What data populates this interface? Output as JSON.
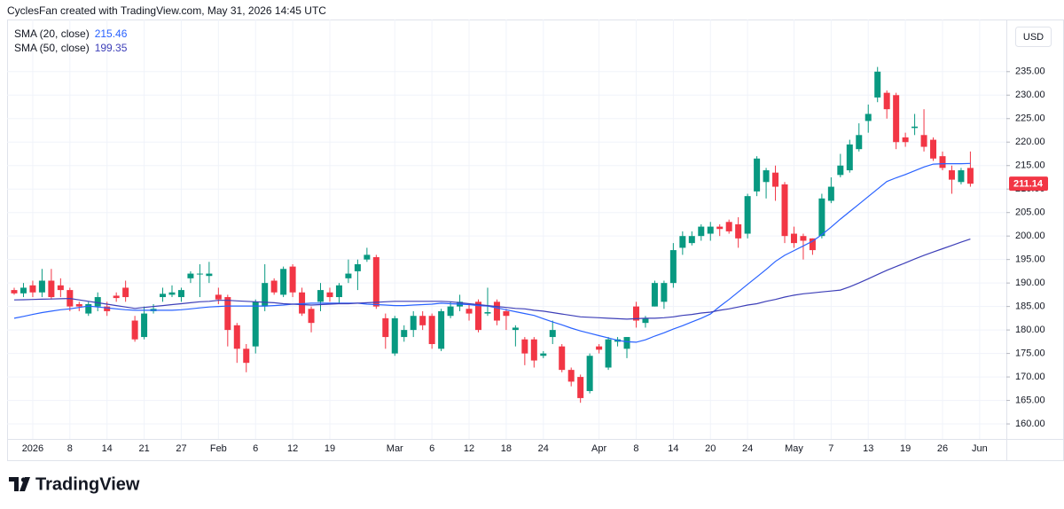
{
  "chart_data": {
    "type": "candlestick",
    "title": "CyclesFan created with TradingView.com, May 31, 2026 14:45 UTC",
    "currency": "USD",
    "brand": "TradingView",
    "up_color": "#089981",
    "down_color": "#f23645",
    "grid": true,
    "ylim": [
      156.8,
      246.1
    ],
    "yticks": [
      {
        "value": 160,
        "label": "160.00"
      },
      {
        "value": 165,
        "label": "165.00"
      },
      {
        "value": 170,
        "label": "170.00"
      },
      {
        "value": 175,
        "label": "175.00"
      },
      {
        "value": 180,
        "label": "180.00"
      },
      {
        "value": 185,
        "label": "185.00"
      },
      {
        "value": 190,
        "label": "190.00"
      },
      {
        "value": 195,
        "label": "195.00"
      },
      {
        "value": 200,
        "label": "200.00"
      },
      {
        "value": 205,
        "label": "205.00"
      },
      {
        "value": 210,
        "label": "210.00"
      },
      {
        "value": 215,
        "label": "215.00"
      },
      {
        "value": 220,
        "label": "220.00"
      },
      {
        "value": 225,
        "label": "225.00"
      },
      {
        "value": 230,
        "label": "230.00"
      },
      {
        "value": 235,
        "label": "235.00"
      }
    ],
    "categories": [
      null,
      null,
      "2026",
      null,
      null,
      null,
      "8",
      null,
      null,
      null,
      "14",
      null,
      null,
      null,
      "21",
      null,
      null,
      null,
      "27",
      null,
      null,
      null,
      "Feb",
      null,
      null,
      null,
      "6",
      null,
      null,
      null,
      "12",
      null,
      null,
      null,
      "19",
      null,
      null,
      null,
      null,
      null,
      null,
      "Mar",
      null,
      null,
      null,
      "6",
      null,
      null,
      null,
      "12",
      null,
      null,
      null,
      "18",
      null,
      null,
      null,
      "24",
      null,
      null,
      null,
      null,
      null,
      "Apr",
      null,
      null,
      null,
      "8",
      null,
      null,
      null,
      "14",
      null,
      null,
      null,
      "20",
      null,
      null,
      null,
      "24",
      null,
      null,
      null,
      null,
      "May",
      null,
      null,
      null,
      "7",
      null,
      null,
      null,
      "13",
      null,
      null,
      null,
      "19",
      null,
      null,
      null,
      "26",
      null,
      null,
      null,
      "Jun"
    ],
    "open": [
      188.5,
      187.8,
      189.5,
      188,
      190.5,
      189.5,
      188.5,
      185.5,
      183.5,
      185,
      185,
      187.3,
      189,
      182,
      178.5,
      184,
      187,
      187.5,
      187,
      191,
      192,
      191.5,
      187.5,
      187,
      181,
      176,
      176.5,
      185,
      190.5,
      187.5,
      193.5,
      188,
      184.5,
      186,
      188,
      187,
      191,
      192.5,
      195,
      195.5,
      182.5,
      175,
      178.5,
      180,
      183,
      183,
      176,
      183,
      185,
      184.5,
      186,
      183.5,
      186,
      184,
      180,
      178,
      178,
      174.5,
      178.5,
      176.5,
      171.5,
      170,
      167,
      176.5,
      172,
      177.5,
      176,
      185,
      181.5,
      185,
      186,
      190,
      197.5,
      198.5,
      200,
      200.5,
      202,
      203,
      202.5,
      200.5,
      209.5,
      211.5,
      213.5,
      211,
      200.5,
      200,
      199.5,
      200,
      207.5,
      213,
      214,
      218.5,
      224.5,
      229.5,
      230.5,
      230,
      221,
      223,
      221.5,
      220.5,
      217,
      214,
      211.5,
      214.5,
      null
    ],
    "high": [
      189,
      190,
      190.5,
      193,
      193,
      191,
      189,
      186,
      186,
      188,
      186,
      188,
      190.5,
      183,
      185,
      185.5,
      189,
      189.5,
      189,
      192.5,
      194,
      194.5,
      189,
      187.5,
      181.5,
      177,
      186.5,
      194,
      191,
      193.5,
      194,
      189,
      185,
      190,
      189,
      190,
      195,
      195,
      197.5,
      196,
      183.5,
      183,
      181,
      184,
      184,
      183.5,
      184.5,
      186,
      187.5,
      185.5,
      186.5,
      189,
      186.5,
      184.5,
      181,
      178.5,
      178.5,
      175.5,
      182,
      177,
      172,
      170.5,
      175,
      177,
      178.5,
      178.5,
      178.5,
      186,
      183,
      190.5,
      190.5,
      198.5,
      201,
      201,
      202.5,
      203,
      202.5,
      203.5,
      204,
      209,
      217,
      214.5,
      215,
      211.5,
      202,
      200.5,
      199.5,
      209,
      212.5,
      217.5,
      220.5,
      224,
      228,
      236,
      231,
      230.5,
      222,
      226,
      227,
      221,
      218,
      215,
      214.5,
      218,
      null
    ],
    "low": [
      187.5,
      187,
      187,
      187,
      186.5,
      187,
      184,
      184,
      183,
      184,
      183,
      186,
      186,
      177.5,
      178,
      183.5,
      186,
      187,
      186,
      190,
      187,
      190,
      185.5,
      176.5,
      173,
      171,
      175,
      184,
      187.5,
      187,
      187,
      183,
      179.5,
      184,
      186,
      185.5,
      190,
      188.5,
      194.5,
      184.5,
      176,
      174.5,
      177.5,
      178.5,
      180,
      176,
      175.5,
      182.5,
      184,
      182,
      179.5,
      183,
      181,
      180,
      176.5,
      172.5,
      172,
      174,
      177,
      171,
      168,
      164.5,
      166.5,
      175,
      171.5,
      176.5,
      174,
      180.5,
      180.5,
      185,
      184.5,
      189,
      196,
      198,
      199,
      199,
      200,
      200.5,
      197.5,
      199.5,
      208.5,
      208,
      207.5,
      198.5,
      197.5,
      195,
      196,
      199.5,
      207,
      212.5,
      213.5,
      218,
      222,
      228.5,
      225,
      218.5,
      219,
      221.5,
      218,
      216,
      214,
      209,
      211,
      210.5,
      null
    ],
    "close": [
      187.8,
      189,
      188,
      190.5,
      187,
      188.5,
      185,
      185,
      185.5,
      187,
      184,
      186.8,
      187,
      178,
      183.5,
      184.5,
      187.7,
      188,
      188.5,
      192,
      192,
      192,
      186.5,
      180,
      176,
      173,
      186,
      190,
      188,
      193,
      188,
      183.5,
      181.5,
      188.5,
      187,
      189.5,
      192,
      194,
      196,
      185,
      178.5,
      182.5,
      180,
      183,
      181,
      177,
      184,
      185,
      186,
      183.5,
      180,
      183.8,
      182,
      183,
      180.5,
      175,
      173.5,
      175,
      180,
      171.5,
      169,
      165.5,
      174.5,
      175.8,
      178,
      178,
      178.5,
      182,
      182.5,
      190,
      190,
      197,
      200,
      200,
      202,
      202,
      201.5,
      201,
      199.5,
      208.5,
      216.5,
      214,
      210.5,
      200,
      198.5,
      199,
      197,
      208,
      210.5,
      215,
      219.5,
      221.5,
      226,
      235,
      227,
      220,
      220,
      223.3,
      219,
      216.5,
      214.5,
      212,
      214,
      211.14,
      null
    ],
    "series": [
      {
        "name": "SMA (20, close)",
        "color": "#2962ff",
        "values": [
          182.5,
          182.9,
          183.3,
          183.7,
          184.0,
          184.3,
          184.5,
          184.8,
          185.1,
          184.9,
          184.7,
          184.5,
          184.3,
          184.2,
          184.2,
          184.2,
          184.2,
          184.2,
          184.3,
          184.5,
          184.7,
          184.9,
          185.0,
          185.1,
          185.1,
          185.1,
          185.1,
          185.1,
          185.2,
          185.3,
          185.5,
          185.6,
          185.7,
          185.7,
          185.7,
          185.7,
          185.7,
          185.7,
          185.5,
          185.4,
          185.3,
          185.2,
          185.2,
          185.3,
          185.4,
          185.5,
          185.7,
          185.6,
          185.5,
          185.4,
          185.2,
          185.1,
          184.7,
          184.3,
          183.9,
          183.5,
          183.1,
          182.4,
          181.7,
          181.1,
          180.4,
          179.8,
          179.3,
          178.8,
          178.3,
          177.8,
          177.5,
          177.4,
          177.9,
          178.7,
          179.4,
          180.2,
          180.9,
          181.7,
          182.5,
          183.4,
          185.0,
          186.5,
          188.1,
          189.7,
          191.3,
          192.9,
          194.6,
          195.9,
          196.9,
          197.9,
          198.9,
          200.3,
          201.9,
          203.6,
          205.2,
          206.8,
          208.4,
          210.0,
          211.6,
          212.4,
          213.1,
          213.9,
          214.7,
          215.3,
          215.4,
          215.4,
          215.4,
          215.46,
          null
        ]
      },
      {
        "name": "SMA (50, close)",
        "color": "#3d3fb8",
        "values": [
          186.4,
          186.45,
          186.5,
          186.55,
          186.6,
          186.65,
          186.7,
          186.4,
          186.1,
          185.8,
          185.5,
          185.2,
          184.9,
          184.6,
          184.8,
          185.0,
          185.2,
          185.4,
          185.6,
          185.8,
          186.0,
          186.1,
          186.3,
          186.3,
          186.2,
          186.1,
          186.0,
          185.9,
          185.8,
          185.6,
          185.5,
          185.4,
          185.3,
          185.4,
          185.5,
          185.6,
          185.6,
          185.7,
          185.8,
          185.9,
          186.0,
          186.1,
          186.1,
          186.1,
          186.1,
          186.1,
          186.1,
          186.0,
          185.8,
          185.6,
          185.4,
          185.2,
          185.0,
          184.8,
          184.6,
          184.5,
          184.2,
          184.0,
          183.7,
          183.4,
          183.1,
          182.8,
          182.7,
          182.6,
          182.5,
          182.4,
          182.3,
          182.4,
          182.5,
          182.5,
          182.6,
          182.8,
          183.1,
          183.3,
          183.6,
          183.8,
          184.2,
          184.5,
          184.9,
          185.3,
          185.6,
          186.1,
          186.5,
          187.0,
          187.4,
          187.7,
          187.9,
          188.1,
          188.3,
          188.5,
          189.2,
          190.0,
          190.9,
          191.8,
          192.7,
          193.5,
          194.3,
          195.1,
          195.9,
          196.6,
          197.3,
          198.0,
          198.7,
          199.35,
          null
        ]
      }
    ]
  }
}
